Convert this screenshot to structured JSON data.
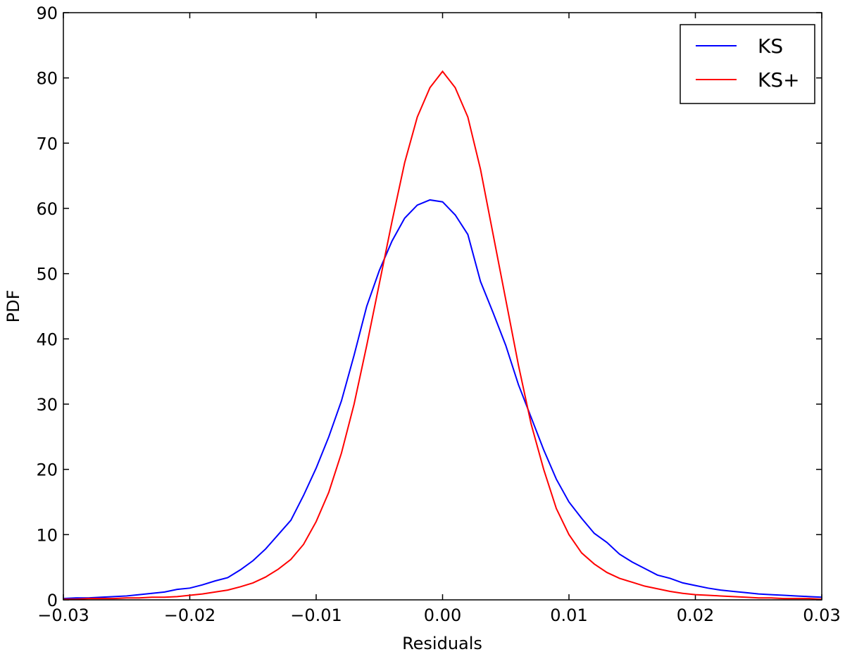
{
  "chart_data": {
    "type": "line",
    "xlabel": "Residuals",
    "ylabel": "PDF",
    "x": [
      -0.03,
      -0.029,
      -0.028,
      -0.027,
      -0.026,
      -0.025,
      -0.024,
      -0.023,
      -0.022,
      -0.021,
      -0.02,
      -0.019,
      -0.018,
      -0.017,
      -0.016,
      -0.015,
      -0.014,
      -0.013,
      -0.012,
      -0.011,
      -0.01,
      -0.009,
      -0.008,
      -0.007,
      -0.006,
      -0.005,
      -0.004,
      -0.003,
      -0.002,
      -0.001,
      0.0,
      0.001,
      0.002,
      0.003,
      0.004,
      0.005,
      0.006,
      0.007,
      0.008,
      0.009,
      0.01,
      0.011,
      0.012,
      0.013,
      0.014,
      0.015,
      0.016,
      0.017,
      0.018,
      0.019,
      0.02,
      0.021,
      0.022,
      0.023,
      0.024,
      0.025,
      0.026,
      0.027,
      0.028,
      0.029,
      0.03
    ],
    "series": [
      {
        "name": "KS",
        "color": "#0000ff",
        "values": [
          0.2,
          0.3,
          0.3,
          0.4,
          0.5,
          0.6,
          0.8,
          1.0,
          1.2,
          1.6,
          1.8,
          2.3,
          2.9,
          3.4,
          4.6,
          6.0,
          7.8,
          10.0,
          12.2,
          16.0,
          20.2,
          25.0,
          30.5,
          37.5,
          45.0,
          50.5,
          55.0,
          58.5,
          60.5,
          61.3,
          61.0,
          59.0,
          56.0,
          48.8,
          44.0,
          39.0,
          33.0,
          28.0,
          23.0,
          18.5,
          15.0,
          12.5,
          10.2,
          8.8,
          7.0,
          5.8,
          4.8,
          3.8,
          3.3,
          2.6,
          2.2,
          1.8,
          1.5,
          1.3,
          1.1,
          0.9,
          0.8,
          0.7,
          0.6,
          0.5,
          0.4
        ]
      },
      {
        "name": "KS+",
        "color": "#ff0000",
        "values": [
          0.1,
          0.1,
          0.2,
          0.2,
          0.2,
          0.3,
          0.3,
          0.4,
          0.4,
          0.5,
          0.7,
          0.9,
          1.2,
          1.5,
          2.0,
          2.6,
          3.5,
          4.7,
          6.2,
          8.5,
          12.0,
          16.5,
          22.5,
          30.0,
          39.0,
          48.5,
          58.0,
          67.0,
          74.0,
          78.5,
          81.0,
          78.5,
          74.0,
          66.0,
          56.0,
          46.0,
          36.0,
          27.0,
          20.0,
          14.0,
          10.0,
          7.2,
          5.5,
          4.2,
          3.3,
          2.7,
          2.1,
          1.7,
          1.3,
          1.0,
          0.8,
          0.7,
          0.6,
          0.5,
          0.4,
          0.3,
          0.3,
          0.2,
          0.2,
          0.2,
          0.1
        ]
      }
    ],
    "xlim": [
      -0.03,
      0.03
    ],
    "xticks": [
      {
        "value": -0.03,
        "label": "−0.03"
      },
      {
        "value": -0.02,
        "label": "−0.02"
      },
      {
        "value": -0.01,
        "label": "−0.01"
      },
      {
        "value": 0,
        "label": "0.00"
      },
      {
        "value": 0.01,
        "label": "0.01"
      },
      {
        "value": 0.02,
        "label": "0.02"
      },
      {
        "value": 0.03,
        "label": "0.03"
      }
    ],
    "ylim": [
      0,
      90
    ],
    "yticks": [
      0,
      10,
      20,
      30,
      40,
      50,
      60,
      70,
      80,
      90
    ],
    "legend": "upper right"
  }
}
